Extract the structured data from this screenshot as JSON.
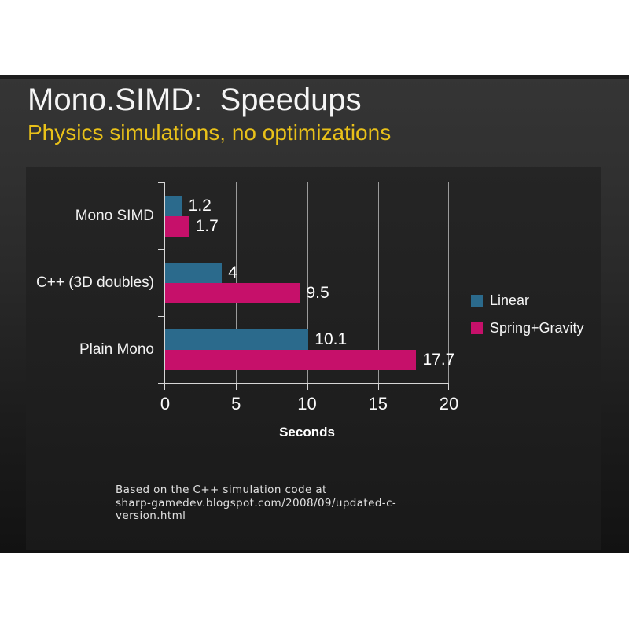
{
  "slide": {
    "title": "Mono.SIMD:  Speedups",
    "subtitle": "Physics simulations, no optimizations",
    "footnote_lines": [
      "Based on the C++ simulation code at",
      "sharp-gamedev.blogspot.com/2008/09/updated-c-",
      "version.html"
    ]
  },
  "chart_data": {
    "type": "bar",
    "orientation": "horizontal",
    "categories": [
      "Mono SIMD",
      "C++ (3D doubles)",
      "Plain Mono"
    ],
    "series": [
      {
        "name": "Linear",
        "color": "#2b6a8c",
        "values": [
          1.2,
          4,
          10.1
        ]
      },
      {
        "name": "Spring+Gravity",
        "color": "#c6106a",
        "values": [
          1.7,
          9.5,
          17.7
        ]
      }
    ],
    "value_labels": [
      [
        "1.2",
        "4",
        "10.1"
      ],
      [
        "1.7",
        "9.5",
        "17.7"
      ]
    ],
    "xlabel": "Seconds",
    "xlim": [
      0,
      20
    ],
    "xticks": [
      "0",
      "5",
      "10",
      "15",
      "20"
    ],
    "grid": true,
    "legend_position": "right",
    "colors": {
      "slide_background_top": "#333333",
      "slide_background_bottom": "#121212",
      "panel_background": "#1f1f1f",
      "title_text": "#f5f5f5",
      "subtitle_text": "#e9c119",
      "axis_line": "#d6d6d6",
      "gridline": "#9b9b9b",
      "label_text": "#ffffff"
    }
  }
}
